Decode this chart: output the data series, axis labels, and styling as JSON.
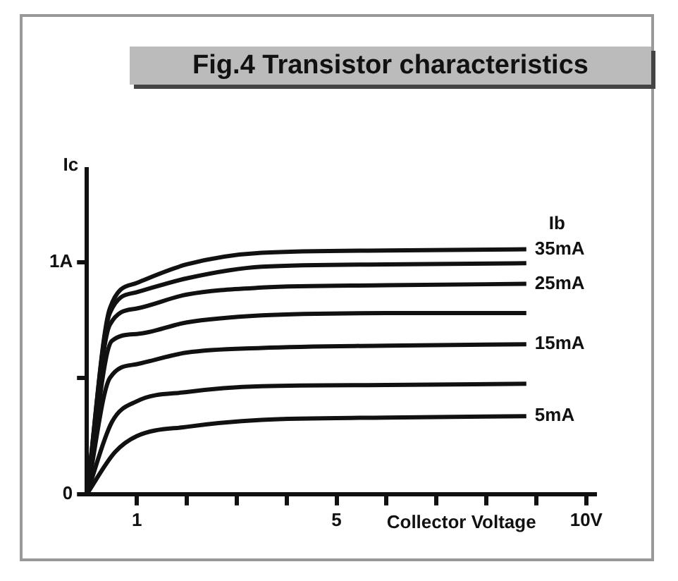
{
  "chart_data": {
    "type": "line",
    "title": "Fig.4 Transistor characteristics",
    "xlabel": "Collector Voltage",
    "ylabel": "Ic",
    "legend_title": "Ib",
    "xlim": [
      0,
      10.2
    ],
    "ylim": [
      0,
      1.4
    ],
    "xticks": [
      {
        "value": 1,
        "label": "1"
      },
      {
        "value": 2,
        "label": null
      },
      {
        "value": 3,
        "label": null
      },
      {
        "value": 4,
        "label": null
      },
      {
        "value": 5,
        "label": "5"
      },
      {
        "value": 6,
        "label": null
      },
      {
        "value": 7,
        "label": null
      },
      {
        "value": 8,
        "label": null
      },
      {
        "value": 9,
        "label": null
      },
      {
        "value": 10,
        "label": "10V"
      }
    ],
    "yticks": [
      0,
      {
        "value": 0.5,
        "label": null
      },
      {
        "value": 1,
        "label": "1A"
      }
    ],
    "grid": false,
    "legend": false,
    "marker": "none",
    "line_style": "solid",
    "series": [
      {
        "name": "35mA",
        "color": "#111111",
        "x": [
          0,
          0.46,
          1,
          2,
          3.5,
          6,
          8.8
        ],
        "values": [
          0,
          0.8,
          0.91,
          0.99,
          1.04,
          1.05,
          1.055
        ]
      },
      {
        "color": "#111111",
        "x": [
          0,
          0.46,
          1,
          2,
          3.5,
          6,
          8.8
        ],
        "values": [
          0,
          0.78,
          0.87,
          0.93,
          0.98,
          0.99,
          0.995
        ]
      },
      {
        "name": "25mA",
        "color": "#111111",
        "x": [
          0,
          0.46,
          1,
          2,
          3.5,
          6,
          8.8
        ],
        "values": [
          0,
          0.73,
          0.8,
          0.86,
          0.89,
          0.9,
          0.906
        ]
      },
      {
        "color": "#111111",
        "x": [
          0,
          0.5,
          1,
          2,
          3.5,
          6,
          8.8
        ],
        "values": [
          0,
          0.66,
          0.69,
          0.74,
          0.77,
          0.78,
          0.78
        ]
      },
      {
        "name": "15mA",
        "color": "#111111",
        "x": [
          0,
          0.46,
          1,
          2,
          3.5,
          6,
          8.8
        ],
        "values": [
          0,
          0.5,
          0.56,
          0.61,
          0.63,
          0.64,
          0.646
        ]
      },
      {
        "color": "#111111",
        "x": [
          0,
          0.5,
          1,
          2,
          3.5,
          6,
          8.8
        ],
        "values": [
          0,
          0.31,
          0.4,
          0.44,
          0.465,
          0.47,
          0.476
        ]
      },
      {
        "name": "5mA",
        "color": "#111111",
        "x": [
          0,
          0.56,
          1,
          2,
          3.5,
          6,
          8.8
        ],
        "values": [
          0,
          0.18,
          0.25,
          0.29,
          0.32,
          0.33,
          0.336
        ]
      }
    ]
  }
}
